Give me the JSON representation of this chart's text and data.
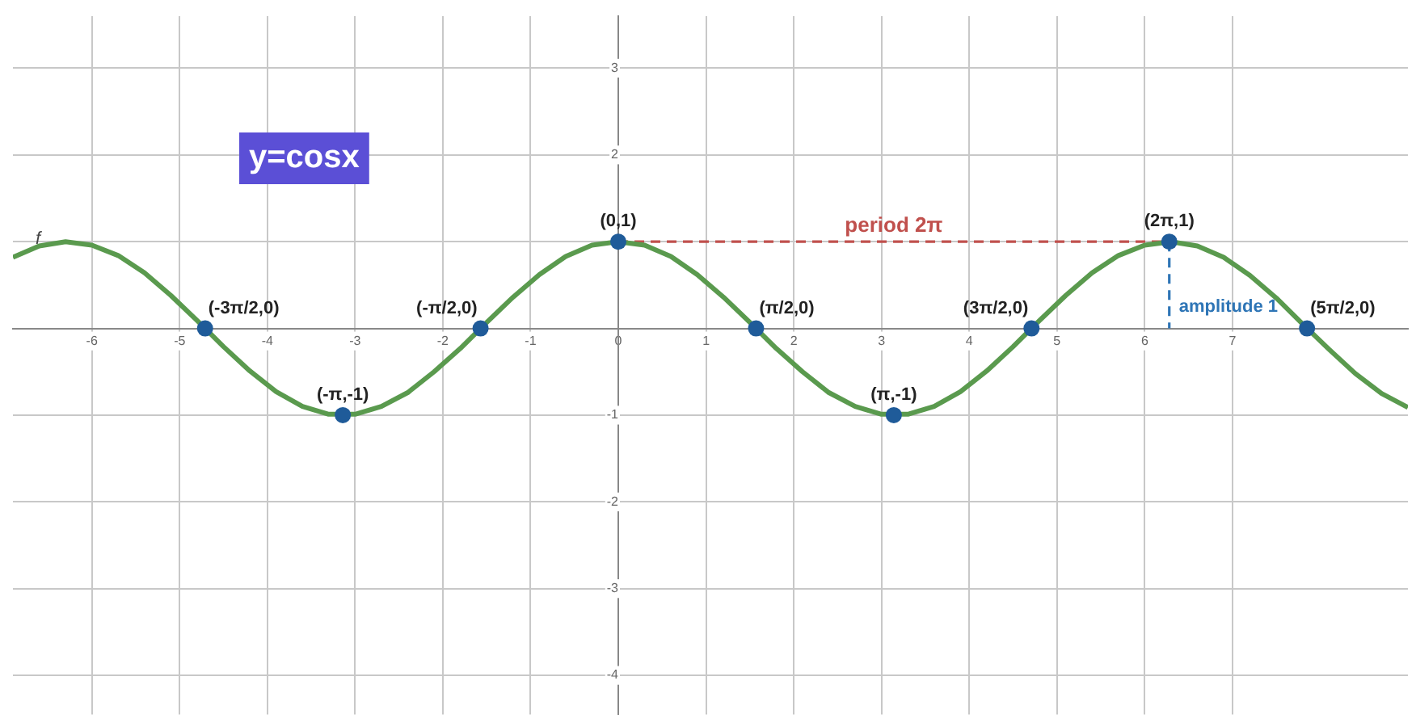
{
  "chart_data": {
    "type": "line",
    "title": "y=cosx",
    "xlim": [
      -6.9,
      9.0
    ],
    "ylim": [
      -4.45,
      3.6
    ],
    "xticks": [
      -6,
      -5,
      -4,
      -3,
      -2,
      -1,
      0,
      1,
      2,
      3,
      4,
      5,
      6,
      7
    ],
    "yticks": [
      -4,
      -3,
      -2,
      -1,
      {
        "value": 1,
        "label": null
      },
      2,
      3
    ],
    "grid": true,
    "legend": false,
    "series": [
      {
        "name": "f",
        "type": "line",
        "color": "#5a9a4e",
        "line_style": "solid",
        "marker": "none",
        "x": [
          -6.9,
          -6.6,
          -6.3,
          -6.0,
          -5.7,
          -5.4,
          -5.1,
          -4.8,
          -4.5,
          -4.2,
          -3.9,
          -3.6,
          -3.3,
          -3.0,
          -2.7,
          -2.4,
          -2.1,
          -1.8,
          -1.5,
          -1.2,
          -0.9,
          -0.6,
          -0.3,
          0,
          0.3,
          0.6,
          0.9,
          1.2,
          1.5,
          1.8,
          2.1,
          2.4,
          2.7,
          3.0,
          3.3,
          3.6,
          3.9,
          4.2,
          4.5,
          4.8,
          5.1,
          5.4,
          5.7,
          6.0,
          6.3,
          6.6,
          6.9,
          7.2,
          7.5,
          7.8,
          8.1,
          8.4,
          8.7,
          9.0
        ],
        "values": [
          0.82,
          0.95,
          1.0,
          0.96,
          0.84,
          0.64,
          0.38,
          0.09,
          -0.21,
          -0.49,
          -0.73,
          -0.9,
          -0.99,
          -0.99,
          -0.9,
          -0.74,
          -0.5,
          -0.23,
          0.07,
          0.36,
          0.62,
          0.83,
          0.96,
          1.0,
          0.96,
          0.83,
          0.62,
          0.36,
          0.07,
          -0.23,
          -0.5,
          -0.74,
          -0.9,
          -0.99,
          -0.99,
          -0.9,
          -0.73,
          -0.49,
          -0.21,
          0.09,
          0.38,
          0.64,
          0.84,
          0.96,
          1.0,
          0.95,
          0.82,
          0.61,
          0.35,
          0.05,
          -0.24,
          -0.52,
          -0.75,
          -0.91
        ]
      },
      {
        "name": "period 2π",
        "type": "line",
        "color": "#c0504d",
        "line_style": "dashed",
        "marker": "none",
        "x": [
          0,
          6.28
        ],
        "values": [
          1,
          1
        ]
      },
      {
        "name": "amplitude 1",
        "type": "line",
        "color": "#2e75b6",
        "line_style": "dashed",
        "marker": "none",
        "x": [
          6.28,
          6.28
        ],
        "values": [
          1,
          0
        ]
      },
      {
        "type": "scatter",
        "color": "#1f5b99",
        "marker": "circle",
        "x": [
          -4.71,
          -3.14,
          -1.57,
          0,
          1.57,
          3.14,
          4.71,
          6.28,
          7.85
        ],
        "values": [
          0,
          -1,
          0,
          1,
          0,
          -1,
          0,
          1,
          0
        ]
      }
    ],
    "annotations": [
      {
        "text": "(-3π/2,0)",
        "x": -4.71,
        "y": 0
      },
      {
        "text": "(-π,-1)",
        "x": -3.14,
        "y": -1
      },
      {
        "text": "(-π/2,0)",
        "x": -1.57,
        "y": 0
      },
      {
        "text": "(0,1)",
        "x": 0,
        "y": 1
      },
      {
        "text": "(π/2,0)",
        "x": 1.57,
        "y": 0
      },
      {
        "text": "(π,-1)",
        "x": 3.14,
        "y": -1
      },
      {
        "text": "(3π/2,0)",
        "x": 4.71,
        "y": 0
      },
      {
        "text": "(2π,1)",
        "x": 6.28,
        "y": 1
      },
      {
        "text": "(5π/2,0)",
        "x": 7.85,
        "y": 0
      }
    ]
  }
}
